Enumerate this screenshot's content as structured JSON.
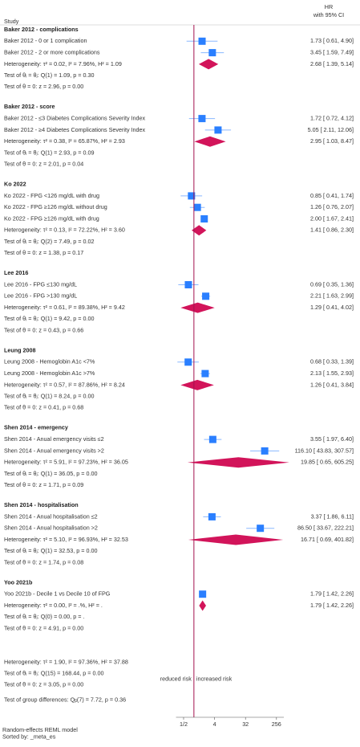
{
  "chart_data": {
    "type": "forest",
    "header": {
      "study": "Study",
      "effect": [
        "HR",
        "with 95% CI"
      ]
    },
    "xscale": "log",
    "xlim": [
      0.3,
      420
    ],
    "xticks": [
      {
        "value": 0.5,
        "label": "1/2"
      },
      4,
      32,
      256
    ],
    "colors": {
      "study": "#2a7fff",
      "ci": "#8ab8ff",
      "summary": "#d2145a",
      "null_line": "#a3124e"
    },
    "direction_labels": [
      "reduced risk",
      "increased risk"
    ],
    "groups": [
      {
        "title": "Baker 2012 - complications",
        "studies": [
          {
            "label": "Baker 2012 - 0 or 1 complication",
            "values": [
              1.73,
              0.61,
              4.9
            ],
            "value_label": "1.73 [  0.61,   4.90]"
          },
          {
            "label": "Baker 2012 - 2 or more complications",
            "values": [
              3.45,
              1.59,
              7.49
            ],
            "value_label": "3.45 [  1.59,   7.49]"
          }
        ],
        "heterogeneity": {
          "label": "Heterogeneity: τ² = 0.02, I² = 7.96%, H² = 1.09",
          "values": [
            2.68,
            1.39,
            5.14
          ],
          "value_label": "2.68 [  1.39,   5.14]"
        },
        "tests": [
          "Test of θᵢ = θⱼ: Q(1) = 1.09, p = 0.30",
          "Test of θ = 0: z = 2.96, p = 0.00"
        ]
      },
      {
        "title": "Baker 2012 - score",
        "studies": [
          {
            "label": "Baker 2012 - ≤3 Diabetes Complications Severity Index",
            "values": [
              1.72,
              0.72,
              4.12
            ],
            "value_label": "1.72 [  0.72,   4.12]"
          },
          {
            "label": "Baker 2012 - ≥4 Diabetes Complications Severity Index",
            "values": [
              5.05,
              2.11,
              12.06
            ],
            "value_label": "5.05 [  2.11,  12.06]"
          }
        ],
        "heterogeneity": {
          "label": "Heterogeneity: τ² = 0.38, I² = 65.87%, H² = 2.93",
          "values": [
            2.95,
            1.03,
            8.47
          ],
          "value_label": "2.95 [  1.03,   8.47]"
        },
        "tests": [
          "Test of θᵢ = θⱼ: Q(1) = 2.93, p = 0.09",
          "Test of θ = 0: z = 2.01, p = 0.04"
        ]
      },
      {
        "title": "Ko 2022",
        "studies": [
          {
            "label": "Ko 2022 - FPG <126 mg/dL with drug",
            "values": [
              0.85,
              0.41,
              1.74
            ],
            "value_label": "0.85 [  0.41,   1.74]"
          },
          {
            "label": "Ko 2022 - FPG ≥126 mg/dL without drug",
            "values": [
              1.26,
              0.76,
              2.07
            ],
            "value_label": "1.26 [  0.76,   2.07]"
          },
          {
            "label": "Ko 2022 - FPG ≥126 mg/dL with drug",
            "values": [
              2.0,
              1.67,
              2.41
            ],
            "value_label": "2.00 [  1.67,   2.41]"
          }
        ],
        "heterogeneity": {
          "label": "Heterogeneity: τ² = 0.13, I² = 72.22%, H² = 3.60",
          "values": [
            1.41,
            0.86,
            2.3
          ],
          "value_label": "1.41 [  0.86,   2.30]"
        },
        "tests": [
          "Test of θᵢ = θⱼ: Q(2) = 7.49, p = 0.02",
          "Test of θ = 0: z = 1.38, p = 0.17"
        ]
      },
      {
        "title": "Lee 2016",
        "studies": [
          {
            "label": "Lee 2016 - FPG ≤130 mg/dL",
            "values": [
              0.69,
              0.35,
              1.36
            ],
            "value_label": "0.69 [  0.35,   1.36]"
          },
          {
            "label": "Lee 2016 - FPG >130 mg/dL",
            "values": [
              2.21,
              1.63,
              2.99
            ],
            "value_label": "2.21 [  1.63,   2.99]"
          }
        ],
        "heterogeneity": {
          "label": "Heterogeneity: τ² = 0.61, I² = 89.38%, H² = 9.42",
          "values": [
            1.29,
            0.41,
            4.02
          ],
          "value_label": "1.29 [  0.41,   4.02]"
        },
        "tests": [
          "Test of θᵢ = θⱼ: Q(1) = 9.42, p = 0.00",
          "Test of θ = 0: z = 0.43, p = 0.66"
        ]
      },
      {
        "title": "Leung 2008",
        "studies": [
          {
            "label": "Leung 2008 - Hemoglobin A1c <7%",
            "values": [
              0.68,
              0.33,
              1.39
            ],
            "value_label": "0.68 [  0.33,   1.39]"
          },
          {
            "label": "Leung 2008 - Hemoglobin A1c >7%",
            "values": [
              2.13,
              1.55,
              2.93
            ],
            "value_label": "2.13 [  1.55,   2.93]"
          }
        ],
        "heterogeneity": {
          "label": "Heterogeneity: τ² = 0.57, I² = 87.86%, H² = 8.24",
          "values": [
            1.26,
            0.41,
            3.84
          ],
          "value_label": "1.26 [  0.41,   3.84]"
        },
        "tests": [
          "Test of θᵢ = θⱼ: Q(1) = 8.24, p = 0.00",
          "Test of θ = 0: z = 0.41, p = 0.68"
        ]
      },
      {
        "title": "Shen 2014 - emergency",
        "studies": [
          {
            "label": "Shen 2014 - Anual emergency visits ≤2",
            "values": [
              3.55,
              1.97,
              6.4
            ],
            "value_label": "3.55 [  1.97,   6.40]"
          },
          {
            "label": "Shen 2014 - Anual emergency visits >2",
            "values": [
              116.1,
              43.83,
              307.57
            ],
            "value_label": "116.10 [ 43.83, 307.57]"
          }
        ],
        "heterogeneity": {
          "label": "Heterogeneity: τ² = 5.91, I² = 97.23%, H² = 36.05",
          "values": [
            19.85,
            0.65,
            605.25
          ],
          "value_label": "19.85 [  0.65, 605.25]"
        },
        "tests": [
          "Test of θᵢ = θⱼ: Q(1) = 36.05, p = 0.00",
          "Test of θ = 0: z = 1.71, p = 0.09"
        ]
      },
      {
        "title": "Shen 2014 - hospitalisation",
        "studies": [
          {
            "label": "Shen 2014 - Anual hospitalisation ≤2",
            "values": [
              3.37,
              1.86,
              6.11
            ],
            "value_label": "3.37 [  1.86,   6.11]"
          },
          {
            "label": "Shen 2014 - Anual hospitalisation >2",
            "values": [
              86.5,
              33.67,
              222.21
            ],
            "value_label": "86.50 [ 33.67, 222.21]"
          }
        ],
        "heterogeneity": {
          "label": "Heterogeneity: τ² = 5.10, I² = 96.93%, H² = 32.53",
          "values": [
            16.71,
            0.69,
            401.82
          ],
          "value_label": "16.71 [  0.69, 401.82]"
        },
        "tests": [
          "Test of θᵢ = θⱼ: Q(1) = 32.53, p = 0.00",
          "Test of θ = 0: z = 1.74, p = 0.08"
        ]
      },
      {
        "title": "Yoo 2021b",
        "studies": [
          {
            "label": "Yoo 2021b - Decile 1 vs Decile 10 of FPG",
            "values": [
              1.79,
              1.42,
              2.26
            ],
            "value_label": "1.79 [  1.42,   2.26]"
          }
        ],
        "heterogeneity": {
          "label": "Heterogeneity: τ² = 0.00, I² = .%, H² = .",
          "values": [
            1.79,
            1.42,
            2.26
          ],
          "value_label": "1.79 [  1.42,   2.26]"
        },
        "tests": [
          "Test of θᵢ = θⱼ: Q(0) = 0.00, p = .",
          "Test of θ = 0: z = 4.91, p = 0.00"
        ]
      }
    ],
    "overall": {
      "heterogeneity": "Heterogeneity: τ² = 1.90, I² = 97.36%, H² = 37.88",
      "tests": [
        "Test of θᵢ = θⱼ: Q(15) = 168.44, p = 0.00",
        "Test of θ = 0: z = 3.05, p = 0.00"
      ],
      "group_test": "Test of group differences: Qᵦ(7) = 7.72, p = 0.36"
    },
    "notes": [
      "Random-effects REML model",
      "Sorted by: _meta_es"
    ]
  }
}
